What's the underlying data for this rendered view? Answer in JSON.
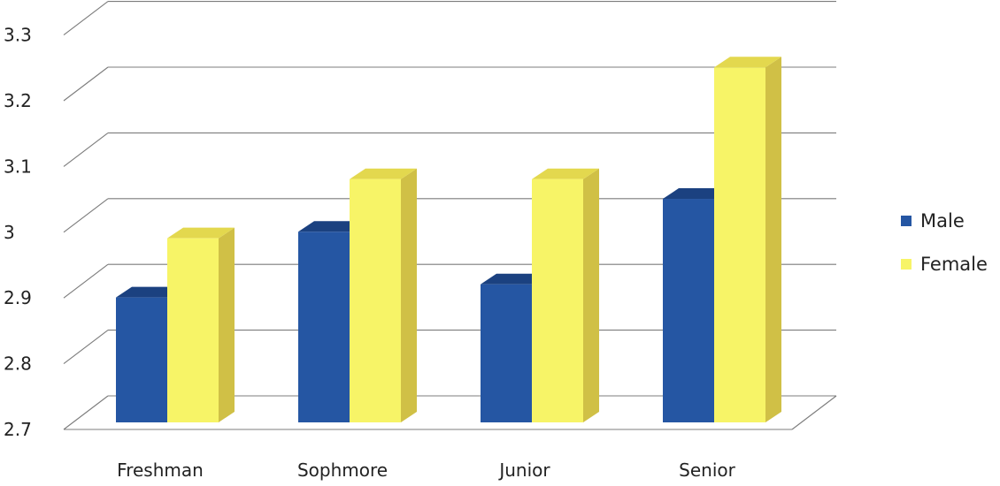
{
  "chart_data": {
    "type": "bar",
    "categories": [
      "Freshman",
      "Sophmore",
      "Junior",
      "Senior"
    ],
    "series": [
      {
        "name": "Male",
        "values": [
          2.89,
          2.99,
          2.91,
          3.04
        ]
      },
      {
        "name": "Female",
        "values": [
          2.98,
          3.07,
          3.07,
          3.24
        ]
      }
    ],
    "ylim": [
      2.7,
      3.3
    ],
    "yticks": [
      2.7,
      2.8,
      2.9,
      3.0,
      3.1,
      3.2,
      3.3
    ],
    "ytick_labels": [
      "2.7",
      "2.8",
      "2.9",
      "3",
      "3.1",
      "3.2",
      "3.3"
    ],
    "grid": true,
    "style": "3d-clustered-column",
    "legend_position": "right",
    "colors": {
      "male_front": "#2556a3",
      "male_top": "#1b4180",
      "male_side": "#16366b",
      "female_front": "#f7f467",
      "female_top": "#e3d84e",
      "female_side": "#d0c046",
      "grid": "#7c7c7c"
    }
  }
}
